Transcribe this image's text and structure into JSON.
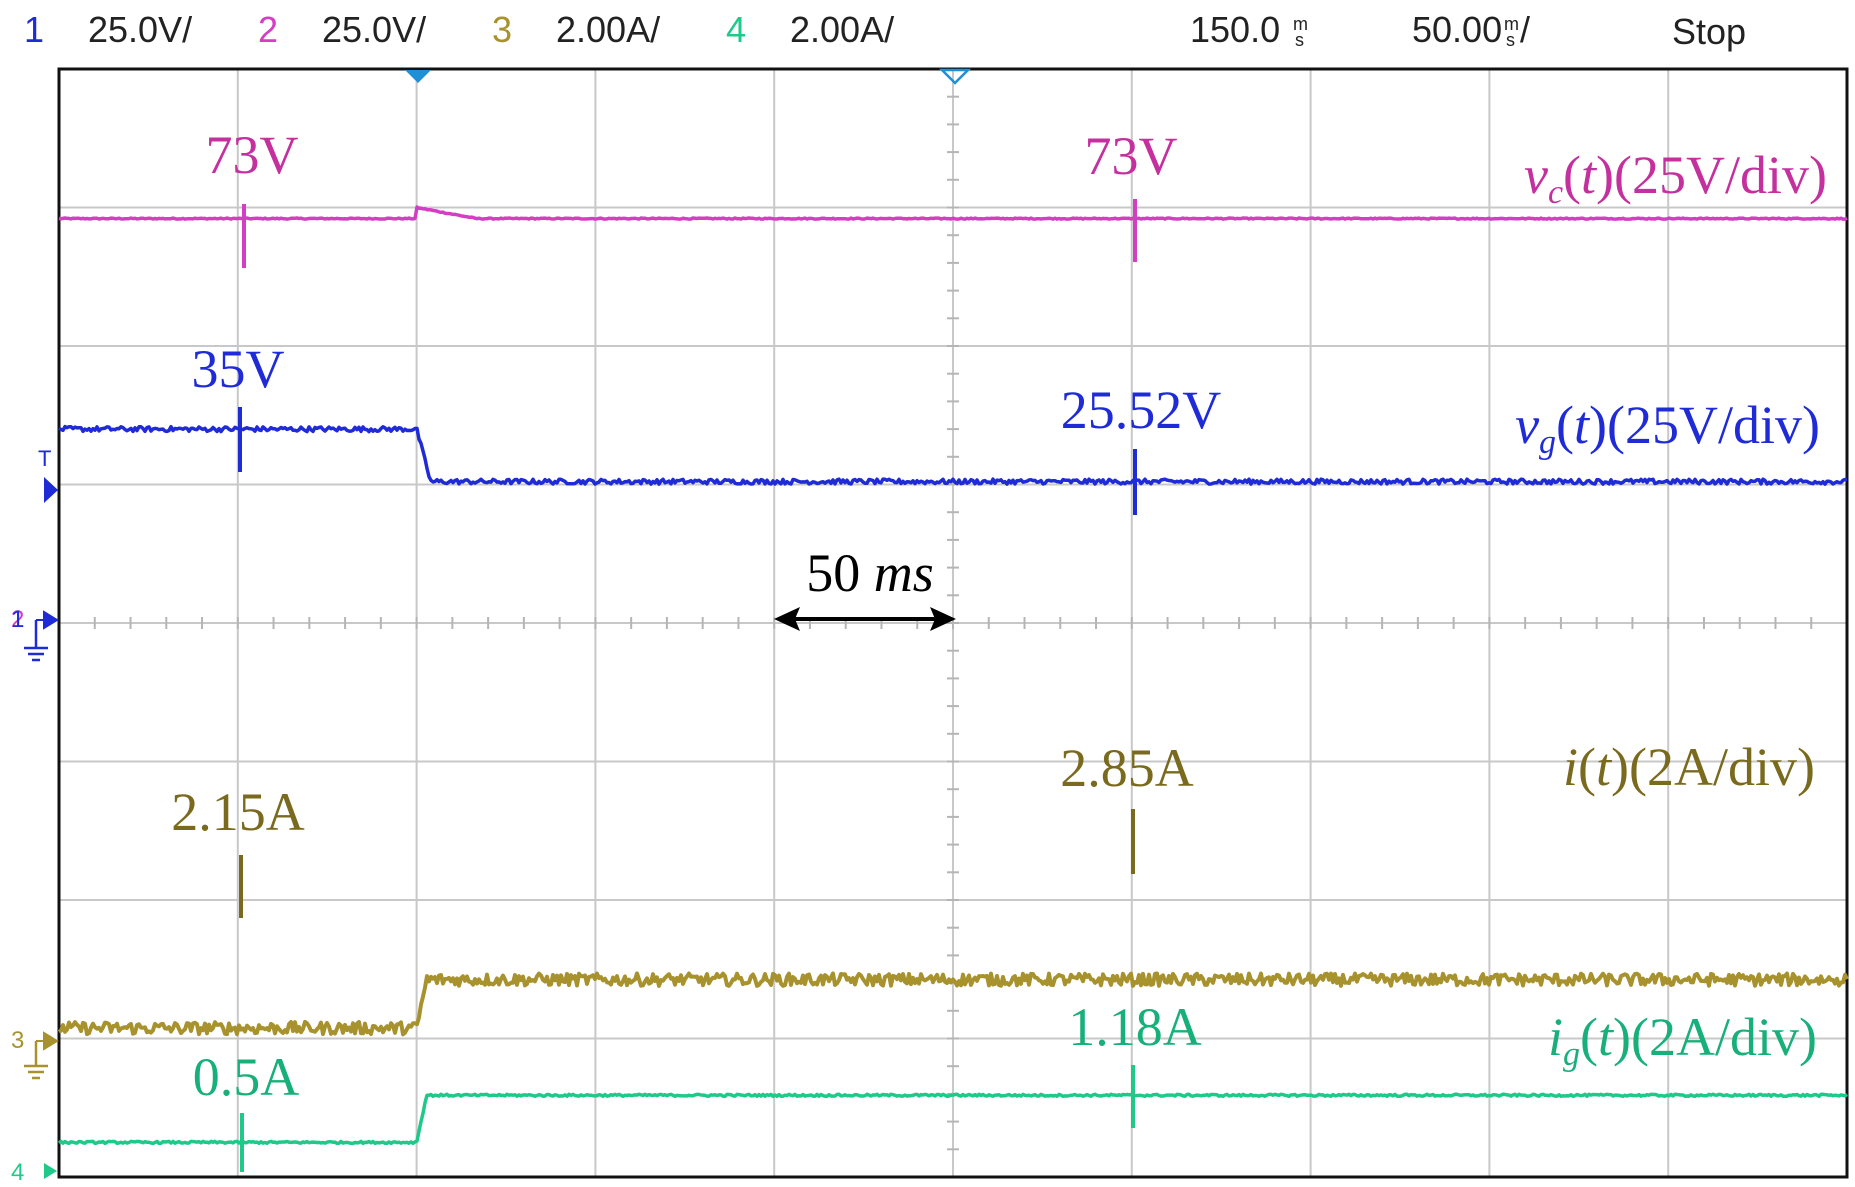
{
  "header": {
    "channels": [
      {
        "num": "1",
        "scale": "25.0V/",
        "color": "#1f2bd6"
      },
      {
        "num": "2",
        "scale": "25.0V/",
        "color": "#d43ec4"
      },
      {
        "num": "3",
        "scale": "2.00A/",
        "color": "#a8922e"
      },
      {
        "num": "4",
        "scale": "2.00A/",
        "color": "#1ec98a"
      }
    ],
    "trigger_pos": {
      "value": "150.0",
      "unit_top": "m",
      "unit_bottom": "s"
    },
    "timebase": {
      "value": "50.00",
      "unit_top": "m",
      "unit_bottom": "s",
      "suffix": "/"
    },
    "status": "Stop"
  },
  "markers": {
    "trigger_label": "T",
    "ch1_ground": "1",
    "ch2_ground": "2",
    "ch3_ground": "3",
    "ch4_ground": "4"
  },
  "annotations": {
    "vc_left": "73V",
    "vc_right": "73V",
    "vg_left": "35V",
    "vg_right": "25.52V",
    "i_left": "2.15A",
    "i_right": "2.85A",
    "ig_left": "0.5A",
    "ig_right": "1.18A",
    "time_arrow": {
      "number": "50",
      "unit": "ms"
    }
  },
  "chart_data": {
    "type": "line",
    "grid": true,
    "x_divisions": 10,
    "y_divisions": 8,
    "time_per_div_ms": 50,
    "x_unit": "ms",
    "xlim": [
      0,
      500
    ],
    "step_time_ms": 100,
    "series": [
      {
        "id": "vc",
        "label": {
          "var": "v",
          "sub": "c",
          "scale": "(25V/div)"
        },
        "channel": "2",
        "color": "#d43ec4",
        "unit": "V",
        "per_div": 25,
        "zero_div": 0,
        "before": 73,
        "after": 73,
        "noise": 0.1,
        "overshoot": 0.08
      },
      {
        "id": "vg",
        "label": {
          "var": "v",
          "sub": "g",
          "scale": "(25V/div)"
        },
        "channel": "1",
        "color": "#1f2bd6",
        "unit": "V",
        "per_div": 25,
        "zero_div": 0,
        "before": 35,
        "after": 25.52,
        "noise": 0.45,
        "overshoot": 0
      },
      {
        "id": "i",
        "label": {
          "var": "i",
          "sub": "",
          "scale": "(2A/div)"
        },
        "channel": "3",
        "color": "#a8922e",
        "unit": "A",
        "per_div": 2,
        "zero_div": -4,
        "before": 2.15,
        "after": 2.85,
        "noise": 0.09,
        "overshoot": 0
      },
      {
        "id": "ig",
        "label": {
          "var": "i",
          "sub": "g",
          "scale": "(2A/div)"
        },
        "channel": "4",
        "color": "#1ec98a",
        "unit": "A",
        "per_div": 2,
        "zero_div": -4,
        "before": 0.5,
        "after": 1.18,
        "noise": 0.015,
        "overshoot": 0
      }
    ]
  }
}
